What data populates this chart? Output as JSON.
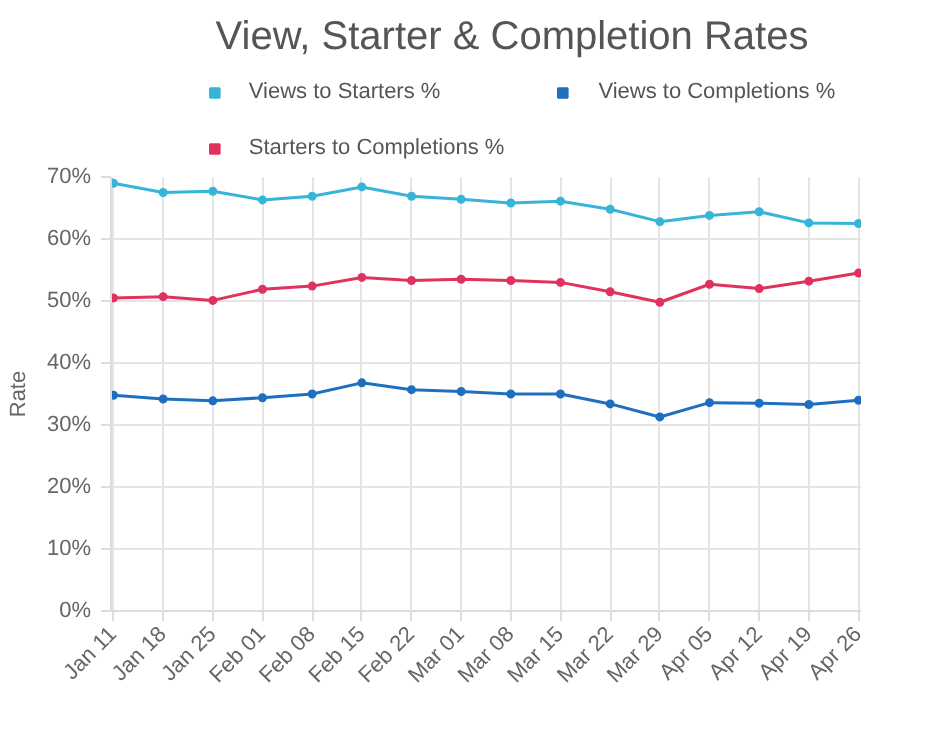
{
  "chart_data": {
    "type": "line",
    "title": "View, Starter & Completion Rates",
    "ylabel": "Rate",
    "categories": [
      "Jan 11",
      "Jan 18",
      "Jan 25",
      "Feb 01",
      "Feb 08",
      "Feb 15",
      "Feb 22",
      "Mar 01",
      "Mar 08",
      "Mar 15",
      "Mar 22",
      "Mar 29",
      "Apr 05",
      "Apr 12",
      "Apr 19",
      "Apr 26"
    ],
    "series": [
      {
        "name": "Views to Starters %",
        "color": "#36b5d8",
        "values": [
          69.0,
          67.5,
          67.7,
          66.3,
          66.9,
          68.4,
          66.9,
          66.4,
          65.8,
          66.1,
          64.8,
          62.8,
          63.8,
          64.4,
          62.6,
          62.5
        ]
      },
      {
        "name": "Views to Completions %",
        "color": "#1f6fc0",
        "values": [
          34.8,
          34.2,
          33.9,
          34.4,
          35.0,
          36.8,
          35.7,
          35.4,
          35.0,
          35.0,
          33.4,
          31.3,
          33.6,
          33.5,
          33.3,
          34.0
        ]
      },
      {
        "name": "Starters to Completions %",
        "color": "#e0325e",
        "values": [
          50.5,
          50.7,
          50.1,
          51.9,
          52.4,
          53.8,
          53.3,
          53.5,
          53.3,
          53.0,
          51.5,
          49.8,
          52.7,
          52.0,
          53.2,
          54.5
        ]
      }
    ],
    "ylim": [
      0,
      70
    ],
    "yticks": [
      {
        "value": 0,
        "label": "0%"
      },
      {
        "value": 10,
        "label": "10%"
      },
      {
        "value": 20,
        "label": "20%"
      },
      {
        "value": 30,
        "label": "30%"
      },
      {
        "value": 40,
        "label": "40%"
      },
      {
        "value": 50,
        "label": "50%"
      },
      {
        "value": 60,
        "label": "60%"
      },
      {
        "value": 70,
        "label": "70%"
      }
    ],
    "grid": true,
    "legend": "top",
    "marker": "circle",
    "line_style": "solid"
  }
}
